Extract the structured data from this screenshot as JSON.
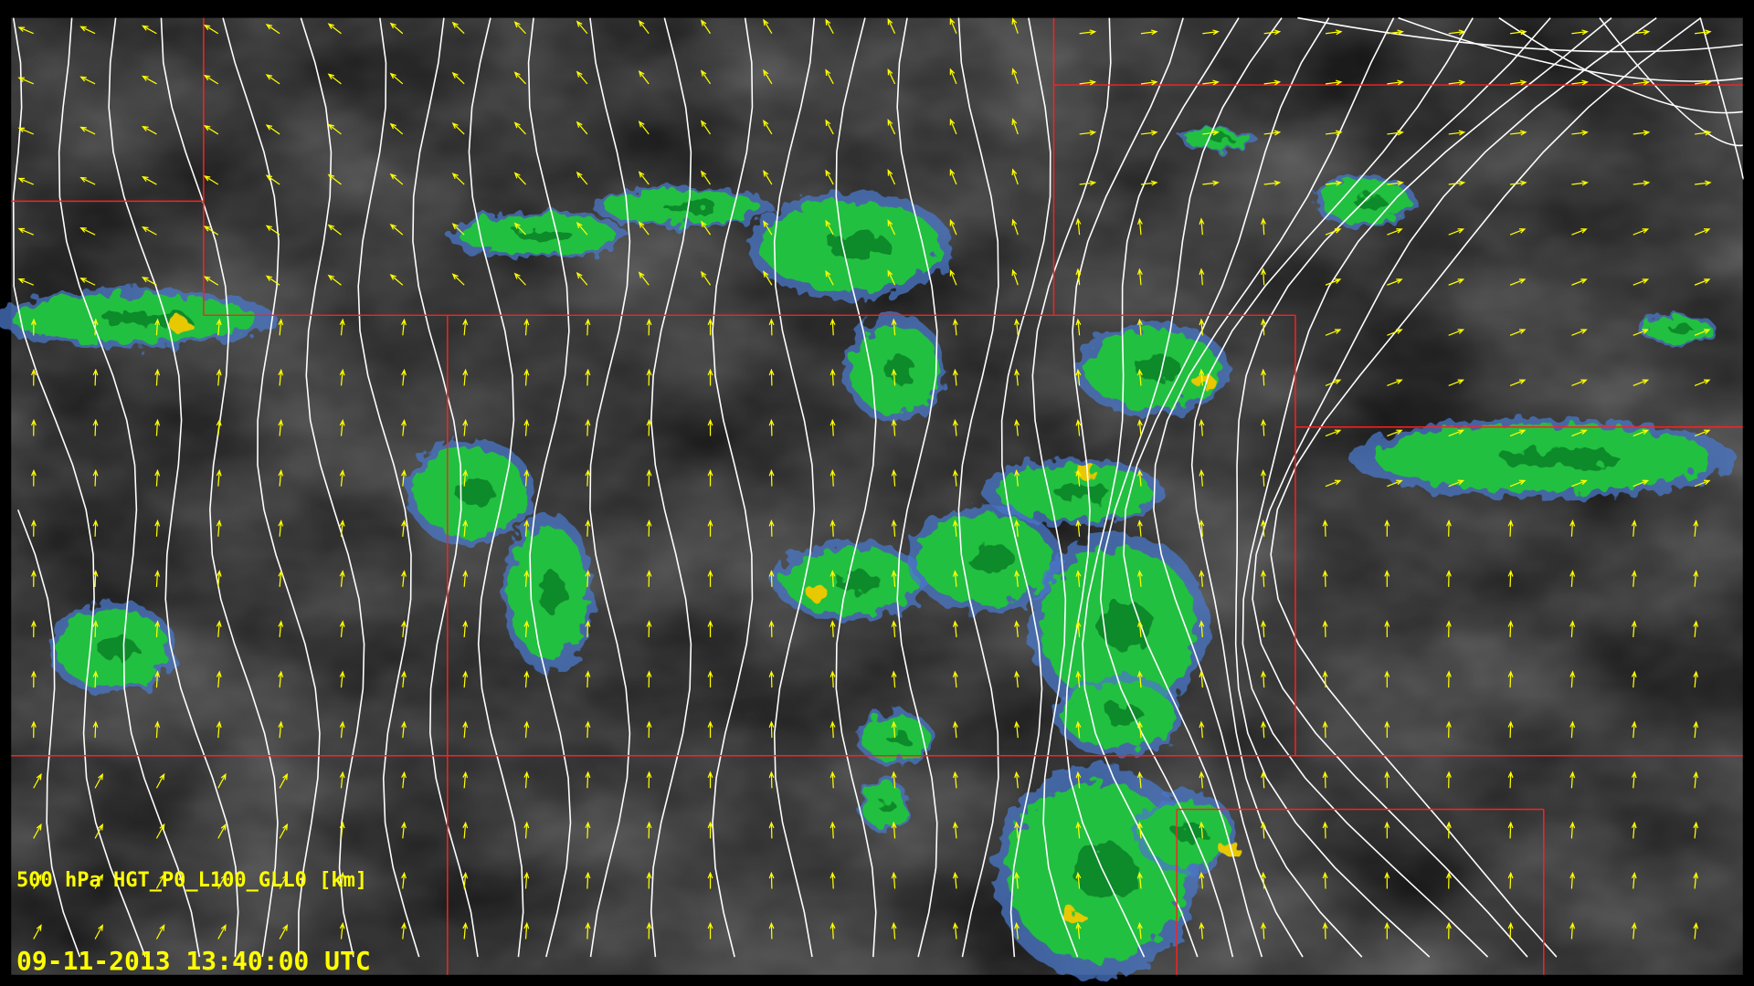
{
  "overlay": {
    "field_label": "500 hPa HGT_P0_L100_GLL0 [km]",
    "timestamp": "09-11-2013 13:40:00 UTC"
  },
  "layers": {
    "background": "satellite infrared imagery (grayscale)",
    "radar": "precipitation reflectivity",
    "contours": "500 hPa geopotential height",
    "vectors": "wind arrows",
    "boundaries": "state borders"
  },
  "colors": {
    "contour": "#ffffff",
    "wind_arrow": "#ffff00",
    "boundary": "#ff2020",
    "radar_low": "#4a78c8",
    "radar_mid": "#22c040",
    "radar_high": "#e8c800",
    "label_text": "#ffff00"
  }
}
